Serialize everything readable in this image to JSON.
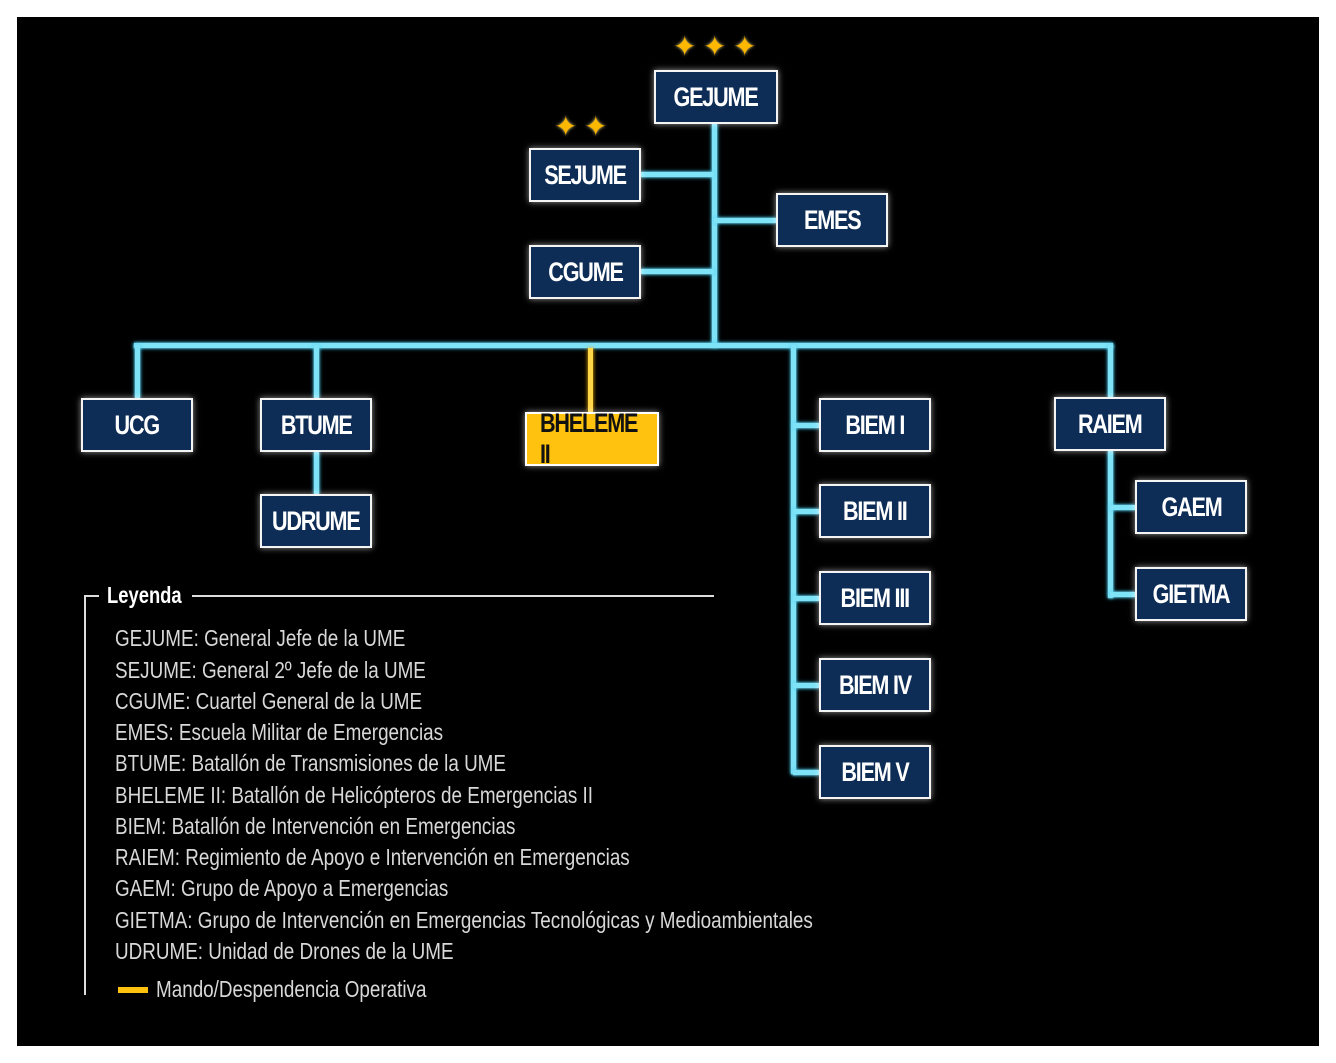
{
  "nodes": {
    "gejume": "GEJUME",
    "sejume": "SEJUME",
    "cgume": "CGUME",
    "emes": "EMES",
    "ucg": "UCG",
    "btume": "BTUME",
    "udrume": "UDRUME",
    "bheleme": "BHELEME II",
    "biem1": "BIEM I",
    "biem2": "BIEM II",
    "biem3": "BIEM III",
    "biem4": "BIEM IV",
    "biem5": "BIEM V",
    "raiem": "RAIEM",
    "gaem": "GAEM",
    "gietma": "GIETMA"
  },
  "colors": {
    "line": "#7fe3f7",
    "box": "#0d2d57",
    "highlight": "#ffc20e",
    "star": "#ffb800"
  },
  "legend": {
    "title": "Leyenda",
    "items": [
      "GEJUME: General Jefe de la UME",
      "SEJUME: General 2º Jefe de la UME",
      "CGUME: Cuartel General de la UME",
      "EMES: Escuela Militar de Emergencias",
      "BTUME: Batallón de Transmisiones de la UME",
      "BHELEME II: Batallón de Helicópteros de Emergencias II",
      "BIEM: Batallón de Intervención en Emergencias",
      "RAIEM: Regimiento de Apoyo e Intervención en Emergencias",
      "GAEM: Grupo de Apoyo a Emergencias",
      "GIETMA: Grupo de Intervención en Emergencias Tecnológicas y Medioambientales",
      "UDRUME: Unidad de Drones de la UME"
    ],
    "operational": "Mando/Despendencia Operativa"
  }
}
